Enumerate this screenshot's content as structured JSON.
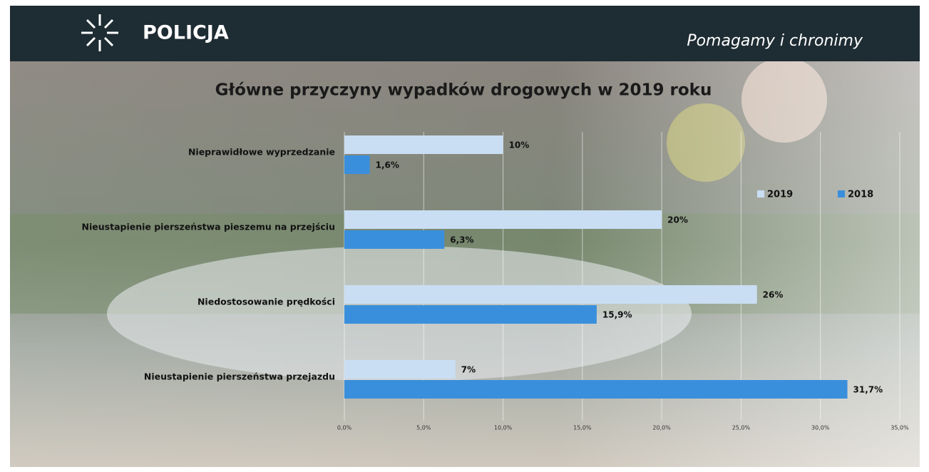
{
  "header": {
    "logo": "POLICJA",
    "slogan": "Pomagamy i chronimy"
  },
  "chart_data": {
    "type": "bar",
    "orientation": "horizontal",
    "title": "Główne przyczyny wypadków drogowych w 2019 roku",
    "categories": [
      "Nieprawidłowe wyprzedzanie",
      "Nieustapienie pierszeństwa pieszemu na przejściu",
      "Niedostosowanie prędkości",
      "Nieustapienie pierszeństwa przejazdu"
    ],
    "series": [
      {
        "name": "2019",
        "color": "#c9def3",
        "values": [
          10,
          20,
          26,
          7
        ],
        "value_labels": [
          "10%",
          "20%",
          "26%",
          "7%"
        ]
      },
      {
        "name": "2018",
        "color": "#3a8fdc",
        "values": [
          1.6,
          6.3,
          15.9,
          31.7
        ],
        "value_labels": [
          "1,6%",
          "6,3%",
          "15,9%",
          "31,7%"
        ]
      }
    ],
    "xlim": [
      0,
      35
    ],
    "xticks": [
      {
        "value": 0,
        "label": "0,0%"
      },
      {
        "value": 5,
        "label": "5,0%"
      },
      {
        "value": 10,
        "label": "10,0%"
      },
      {
        "value": 15,
        "label": "15,0%"
      },
      {
        "value": 20,
        "label": "20,0%"
      },
      {
        "value": 25,
        "label": "25,0%"
      },
      {
        "value": 30,
        "label": "30,0%"
      },
      {
        "value": 35,
        "label": "35,0%"
      }
    ],
    "grid": true,
    "legend": "right"
  }
}
